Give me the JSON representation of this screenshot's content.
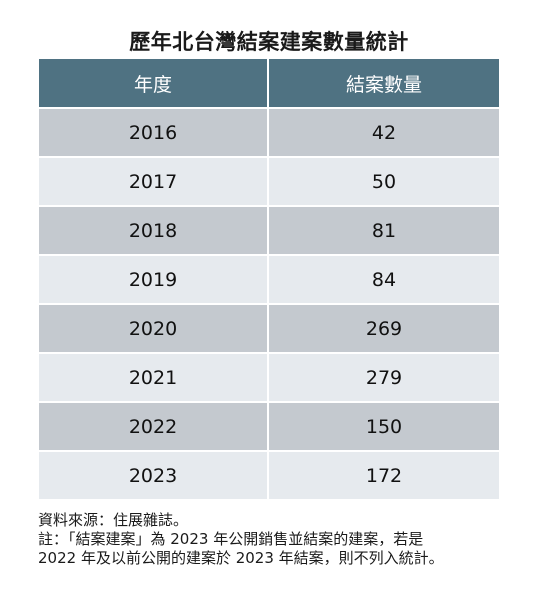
{
  "chart_data": {
    "type": "table",
    "title": "歷年北台灣結案建案數量統計",
    "columns": [
      "年度",
      "結案數量"
    ],
    "rows": [
      {
        "year": "2016",
        "count": "42"
      },
      {
        "year": "2017",
        "count": "50"
      },
      {
        "year": "2018",
        "count": "81"
      },
      {
        "year": "2019",
        "count": "84"
      },
      {
        "year": "2020",
        "count": "269"
      },
      {
        "year": "2021",
        "count": "279"
      },
      {
        "year": "2022",
        "count": "150"
      },
      {
        "year": "2023",
        "count": "172"
      }
    ]
  },
  "notes": {
    "source": "資料來源：住展雜誌。",
    "note_line1": "註：「結案建案」為 2023 年公開銷售並結案的建案，若是",
    "note_line2": "2022 年及以前公開的建案於 2023 年結案，則不列入統計。"
  },
  "colors": {
    "header_bg": "#4f7282",
    "row_dark": "#c4c9cf",
    "row_light": "#e6eaee"
  }
}
